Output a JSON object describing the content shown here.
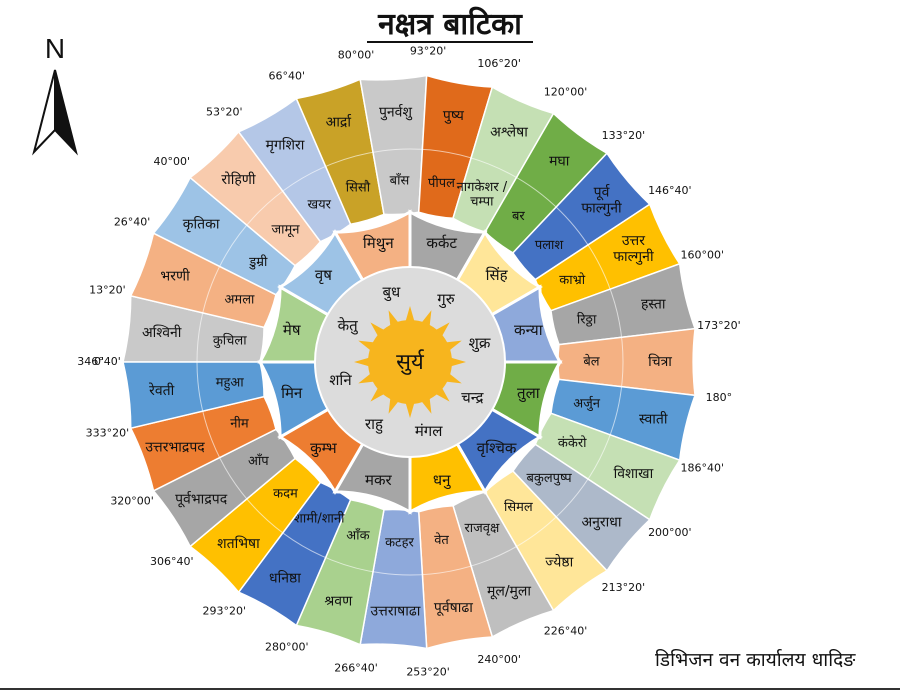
{
  "title": "नक्षत्र बाटिका",
  "footer": "डिभिजन वन कार्यालय धादिङ",
  "compass": {
    "label": "N"
  },
  "center": {
    "label": "सुर्य",
    "color": "#F7B51E"
  },
  "planets": [
    "गुरु",
    "शुक्र",
    "चन्द्र",
    "मंगल",
    "राहु",
    "शनि",
    "केतु",
    "बुध"
  ],
  "rashi": [
    {
      "name": "मेष",
      "color": "#A9D18E"
    },
    {
      "name": "वृष",
      "color": "#9DC3E6"
    },
    {
      "name": "मिथुन",
      "color": "#F4B183"
    },
    {
      "name": "कर्कट",
      "color": "#A6A6A6"
    },
    {
      "name": "सिंह",
      "color": "#FFE699"
    },
    {
      "name": "कन्या",
      "color": "#8EA9DB"
    },
    {
      "name": "तुला",
      "color": "#70AD47"
    },
    {
      "name": "वृश्चिक",
      "color": "#4472C4"
    },
    {
      "name": "धनु",
      "color": "#FFC000"
    },
    {
      "name": "मकर",
      "color": "#A6A6A6"
    },
    {
      "name": "कुम्भ",
      "color": "#ED7D31"
    },
    {
      "name": "मिन",
      "color": "#5B9BD5"
    }
  ],
  "nakshatra": [
    {
      "name": "अश्विनी",
      "tree": "कुचिला",
      "color": "#C9C9C9"
    },
    {
      "name": "भरणी",
      "tree": "अमला",
      "color": "#F4B183"
    },
    {
      "name": "कृतिका",
      "tree": "डुम्री",
      "color": "#9DC3E6"
    },
    {
      "name": "रोहिणी",
      "tree": "जामून",
      "color": "#F8CBAD"
    },
    {
      "name": "मृगशिरा",
      "tree": "खयर",
      "color": "#B4C7E7"
    },
    {
      "name": "आर्द्रा",
      "tree": "सिसौ",
      "color": "#C9A227"
    },
    {
      "name": "पुनर्वशु",
      "tree": "बाँस",
      "color": "#C9C9C9"
    },
    {
      "name": "पुष्य",
      "tree": "पीपल",
      "color": "#E06A1B"
    },
    {
      "name": "अश्लेषा",
      "tree": "नागकेशर / चम्पा",
      "color": "#C5E0B4"
    },
    {
      "name": "मघा",
      "tree": "बर",
      "color": "#70AD47"
    },
    {
      "name": "पूर्व फाल्गुनी",
      "tree": "पलाश",
      "color": "#4472C4"
    },
    {
      "name": "उत्तर फाल्गुनी",
      "tree": "काभ्रो",
      "color": "#FFC000"
    },
    {
      "name": "हस्ता",
      "tree": "रिठ्ठा",
      "color": "#A6A6A6"
    },
    {
      "name": "चित्रा",
      "tree": "बेल",
      "color": "#F4B183"
    },
    {
      "name": "स्वाती",
      "tree": "अर्जुन",
      "color": "#5B9BD5"
    },
    {
      "name": "विशाखा",
      "tree": "कंकेरो",
      "color": "#C5E0B4"
    },
    {
      "name": "अनुराधा",
      "tree": "बकुलपुष्प",
      "color": "#ADB9CA"
    },
    {
      "name": "ज्येष्ठा",
      "tree": "सिमल",
      "color": "#FFE699"
    },
    {
      "name": "मूल/मुला",
      "tree": "राजवृक्ष",
      "color": "#BFBFBF"
    },
    {
      "name": "पूर्वषाढा",
      "tree": "वेत",
      "color": "#F4B183"
    },
    {
      "name": "उत्तराषाढा",
      "tree": "कटहर",
      "color": "#8EA9DB"
    },
    {
      "name": "श्रवण",
      "tree": "आँक",
      "color": "#A9D18E"
    },
    {
      "name": "धनिष्ठा",
      "tree": "शामी/शानी",
      "color": "#4472C4"
    },
    {
      "name": "शतभिषा",
      "tree": "कदम",
      "color": "#FFC000"
    },
    {
      "name": "पूर्वभाद्रपद",
      "tree": "आँप",
      "color": "#A6A6A6"
    },
    {
      "name": "उत्तरभाद्रपद",
      "tree": "नीम",
      "color": "#ED7D31"
    },
    {
      "name": "रेवती",
      "tree": "महुआ",
      "color": "#5B9BD5"
    }
  ],
  "degrees": [
    "0'",
    "13°20'",
    "26°40'",
    "40°00'",
    "53°20'",
    "66°40'",
    "80°00'",
    "93°20'",
    "106°20'",
    "120°00'",
    "133°20'",
    "146°40'",
    "160°00'",
    "173°20'",
    "180°",
    "186°40'",
    "200°00'",
    "213°20'",
    "226°40'",
    "240°00'",
    "253°20'",
    "266°40'",
    "280°00'",
    "293°20'",
    "306°40'",
    "320°00'",
    "333°20'",
    "346°40'"
  ]
}
